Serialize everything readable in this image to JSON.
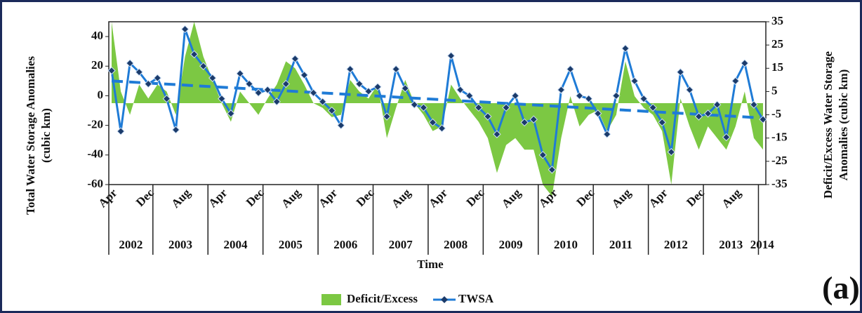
{
  "chart_data": {
    "type": "line",
    "xlabel": "Time",
    "ylabel": [
      "Total Water Storage Anomalies",
      "(cubic km)"
    ],
    "y2label": [
      "Deficit/Excess Water Storage",
      "Anomalies (cubic km)"
    ],
    "annotation": "(a)",
    "legend": "bottom",
    "categories": [
      "Apr",
      null,
      null,
      null,
      "Dec",
      null,
      null,
      null,
      "Aug",
      null,
      null,
      null,
      "Apr",
      null,
      null,
      null,
      "Dec",
      null,
      null,
      null,
      "Aug",
      null,
      null,
      null,
      "Apr",
      null,
      null,
      null,
      "Dec",
      null,
      null,
      null,
      "Aug",
      null,
      null,
      null,
      "Apr",
      null,
      null,
      null,
      "Dec",
      null,
      null,
      null,
      "Aug",
      null,
      null,
      null,
      "Apr",
      null,
      null,
      null,
      "Dec",
      null,
      null,
      null,
      "Aug",
      null,
      null,
      null,
      "Apr",
      null,
      null,
      null,
      "Dec",
      null,
      null,
      null,
      "Aug",
      null,
      null,
      null
    ],
    "years": [
      "2002",
      "2002",
      "2002",
      "2002",
      "2002",
      "2003",
      "2003",
      "2003",
      "2003",
      "2003",
      "2003",
      "2004",
      "2004",
      "2004",
      "2004",
      "2004",
      "2004",
      "2005",
      "2005",
      "2005",
      "2005",
      "2005",
      "2005",
      "2006",
      "2006",
      "2006",
      "2006",
      "2006",
      "2006",
      "2007",
      "2007",
      "2007",
      "2007",
      "2007",
      "2007",
      "2008",
      "2008",
      "2008",
      "2008",
      "2008",
      "2008",
      "2009",
      "2009",
      "2009",
      "2009",
      "2009",
      "2009",
      "2010",
      "2010",
      "2010",
      "2010",
      "2010",
      "2010",
      "2011",
      "2011",
      "2011",
      "2011",
      "2011",
      "2011",
      "2012",
      "2012",
      "2012",
      "2012",
      "2012",
      "2012",
      "2013",
      "2013",
      "2013",
      "2013",
      "2013",
      "2013",
      "2014"
    ],
    "ylim": [
      -60,
      50
    ],
    "yticks": [
      -60,
      -40,
      -20,
      0,
      20,
      40
    ],
    "y2lim": [
      -35,
      35
    ],
    "y2ticks": [
      -35,
      -25,
      -15,
      -5,
      5,
      15,
      25,
      35
    ],
    "series": [
      {
        "name": "Deficit/Excess",
        "type": "area",
        "axis": "y2",
        "color": "#7cc843",
        "values": [
          35,
          5,
          -5,
          8,
          2,
          8,
          5,
          -5,
          20,
          35,
          20,
          10,
          0,
          -8,
          5,
          0,
          -5,
          2,
          8,
          18,
          15,
          8,
          0,
          -2,
          -6,
          -5,
          10,
          5,
          2,
          8,
          -15,
          -2,
          10,
          0,
          -5,
          -12,
          -10,
          8,
          2,
          -3,
          -8,
          -15,
          -30,
          -18,
          -15,
          -20,
          -20,
          -35,
          -40,
          -15,
          3,
          -10,
          -5,
          -3,
          -12,
          -5,
          18,
          3,
          -2,
          -5,
          -12,
          -35,
          2,
          -10,
          -20,
          -10,
          -15,
          -20,
          -10,
          5,
          -15,
          -20
        ]
      },
      {
        "name": "TWSA",
        "type": "line",
        "color": "#1f7bd6",
        "values": [
          17,
          -24,
          22,
          16,
          8,
          12,
          -2,
          -23,
          45,
          28,
          20,
          12,
          -2,
          -12,
          15,
          8,
          2,
          4,
          -4,
          8,
          25,
          14,
          2,
          -4,
          -10,
          -20,
          18,
          8,
          3,
          6,
          -14,
          18,
          5,
          -6,
          -8,
          -18,
          -22,
          27,
          4,
          0,
          -8,
          -14,
          -26,
          -8,
          0,
          -18,
          -16,
          -40,
          -50,
          4,
          18,
          0,
          -2,
          -12,
          -26,
          0,
          32,
          10,
          -2,
          -8,
          -18,
          -38,
          16,
          4,
          -14,
          -12,
          -6,
          -28,
          10,
          22,
          -6,
          -16
        ]
      }
    ],
    "trend": {
      "color": "#1f7bd6",
      "values": [
        10,
        -15
      ]
    }
  }
}
